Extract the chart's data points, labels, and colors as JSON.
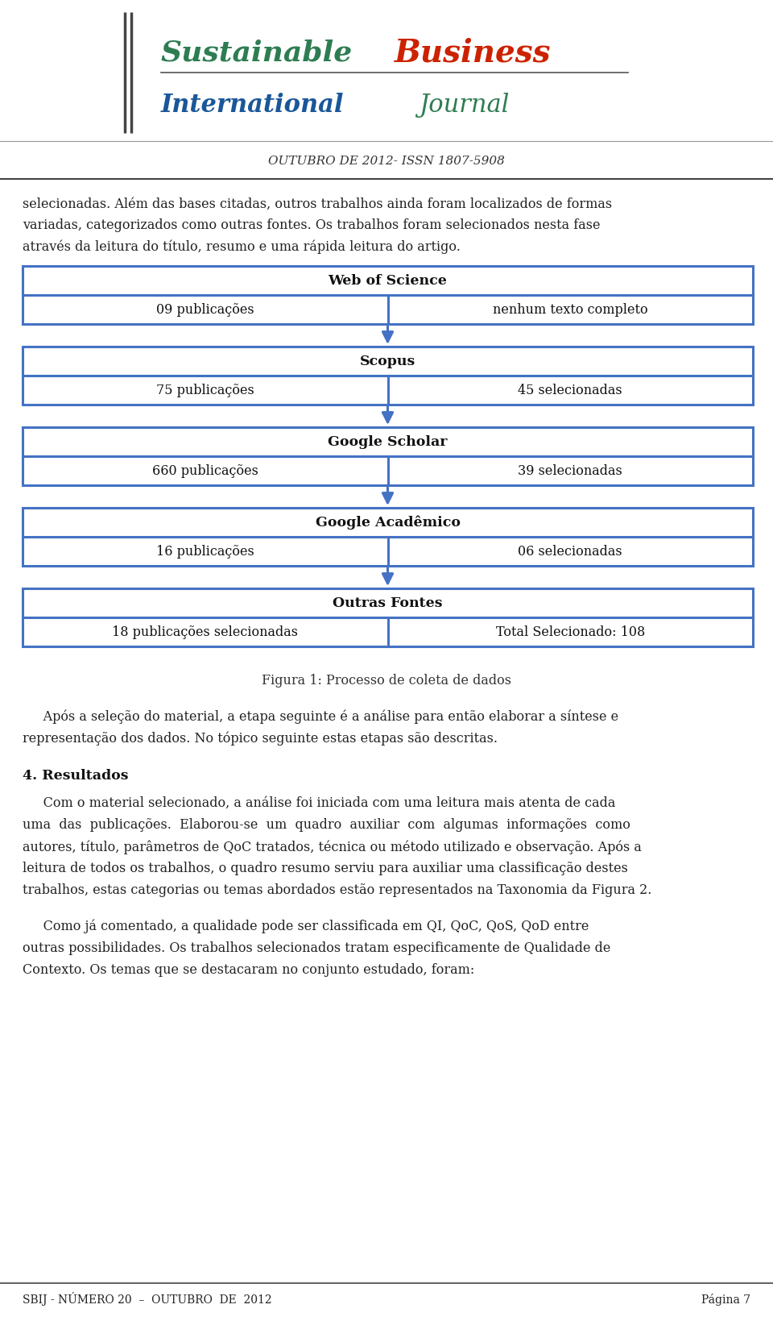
{
  "page_bg": "#ffffff",
  "header_issn": "OUTUBRO DE 2012- ISSN 1807-5908",
  "box_border_color": "#4472C4",
  "boxes": [
    {
      "title": "Web of Science",
      "left_text": "09 publicações",
      "right_text": "nenhum texto completo"
    },
    {
      "title": "Scopus",
      "left_text": "75 publicações",
      "right_text": "45 selecionadas"
    },
    {
      "title": "Google Scholar",
      "left_text": "660 publicações",
      "right_text": "39 selecionadas"
    },
    {
      "title": "Google Acadêmico",
      "left_text": "16 publicações",
      "right_text": "06 selecionadas"
    },
    {
      "title": "Outras Fontes",
      "left_text": "18 publicações selecionadas",
      "right_text": "Total Selecionado: 108"
    }
  ],
  "figure_caption": "Figura 1: Processo de coleta de dados",
  "section4_title": "4. Resultados",
  "footer_left": "SBIJ - NÚMERO 20  –  OUTUBRO  DE  2012",
  "footer_right": "Página 7",
  "arrow_color": "#4472C4",
  "intro_lines": [
    "selecionadas. Além das bases citadas, outros trabalhos ainda foram localizados de formas",
    "variadas, categorizados como outras fontes. Os trabalhos foram selecionados nesta fase",
    "através da leitura do título, resumo e uma rápida leitura do artigo."
  ],
  "para1_lines": [
    "     Após a seleção do material, a etapa seguinte é a análise para então elaborar a síntese e",
    "representação dos dados. No tópico seguinte estas etapas são descritas."
  ],
  "para2_lines": [
    "     Com o material selecionado, a análise foi iniciada com uma leitura mais atenta de cada",
    "uma  das  publicações.  Elaborou-se  um  quadro  auxiliar  com  algumas  informações  como",
    "autores, título, parâmetros de QoC tratados, técnica ou método utilizado e observação. Após a",
    "leitura de todos os trabalhos, o quadro resumo serviu para auxiliar uma classificação destes",
    "trabalhos, estas categorias ou temas abordados estão representados na Taxonomia da Figura 2."
  ],
  "para3_lines": [
    "     Como já comentado, a qualidade pode ser classificada em QI, QoC, QoS, QoD entre",
    "outras possibilidades. Os trabalhos selecionados tratam especificamente de Qualidade de",
    "Contexto. Os temas que se destacaram no conjunto estudado, foram:"
  ]
}
